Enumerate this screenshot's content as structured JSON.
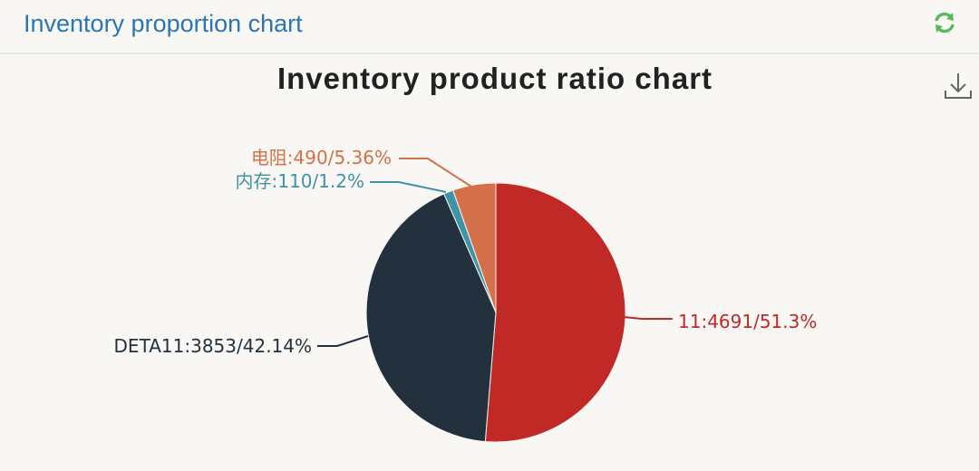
{
  "header": {
    "title": "Inventory proportion chart",
    "refresh_icon": "refresh-icon"
  },
  "toolbar": {
    "download_icon": "download-icon"
  },
  "chart_data": {
    "type": "pie",
    "title": "Inventory product ratio chart",
    "slices": [
      {
        "name": "11",
        "value": 4691,
        "percent": 51.3,
        "label": "11:4691/51.3%",
        "color": "#c02925"
      },
      {
        "name": "DETA11",
        "value": 3853,
        "percent": 42.14,
        "label": "DETA11:3853/42.14%",
        "color": "#22313d"
      },
      {
        "name": "内存",
        "value": 110,
        "percent": 1.2,
        "label": "内存:110/1.2%",
        "color": "#3f93a6"
      },
      {
        "name": "电阻",
        "value": 490,
        "percent": 5.36,
        "label": "电阻:490/5.36%",
        "color": "#d4704a"
      }
    ]
  }
}
